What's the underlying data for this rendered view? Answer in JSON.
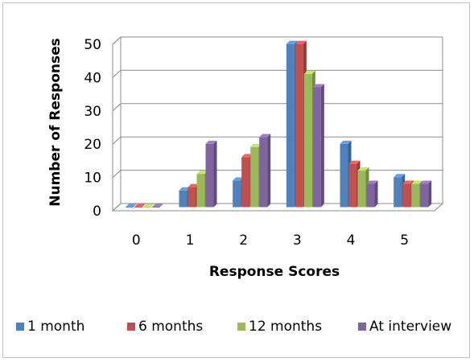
{
  "chart_data": {
    "type": "bar",
    "categories": [
      "0",
      "1",
      "2",
      "3",
      "4",
      "5"
    ],
    "series": [
      {
        "name": "1 month",
        "values": [
          0,
          5,
          8,
          49,
          19,
          9
        ],
        "color": "#4f81bd"
      },
      {
        "name": "6 months",
        "values": [
          0,
          6,
          15,
          49,
          13,
          7
        ],
        "color": "#c0504d"
      },
      {
        "name": "12 months",
        "values": [
          0,
          10,
          18,
          40,
          11,
          7
        ],
        "color": "#9bbb59"
      },
      {
        "name": "At interview",
        "values": [
          0,
          19,
          21,
          36,
          7,
          7
        ],
        "color": "#8064a2"
      }
    ],
    "xlabel": "Response Scores",
    "ylabel": "Number of Responses",
    "ylim": [
      0,
      50
    ],
    "yticks": [
      0,
      10,
      20,
      30,
      40,
      50
    ],
    "grid": true,
    "legend_position": "bottom",
    "style": "3d-clustered-column"
  }
}
